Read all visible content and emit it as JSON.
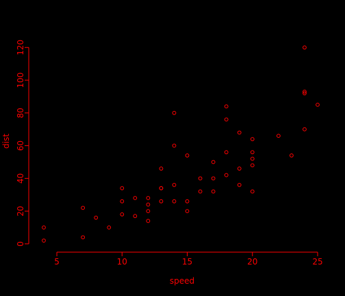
{
  "chart_data": {
    "type": "scatter",
    "title": "",
    "xlabel": "speed",
    "ylabel": "dist",
    "xlim": [
      3.16,
      25.84
    ],
    "ylim": [
      -1.72,
      124.72
    ],
    "xticks": [
      5,
      10,
      15,
      20,
      25
    ],
    "yticks": [
      0,
      20,
      40,
      60,
      80,
      100,
      120
    ],
    "grid": false,
    "legend": "none",
    "colors": {
      "background": "#000000",
      "foreground": "#ff0000"
    },
    "x": [
      4,
      4,
      7,
      7,
      8,
      9,
      10,
      10,
      10,
      11,
      11,
      12,
      12,
      12,
      12,
      13,
      13,
      13,
      13,
      14,
      14,
      14,
      14,
      15,
      15,
      15,
      16,
      16,
      17,
      17,
      17,
      18,
      18,
      18,
      18,
      19,
      19,
      19,
      20,
      20,
      20,
      20,
      20,
      22,
      23,
      24,
      24,
      24,
      24,
      25
    ],
    "y": [
      2,
      10,
      4,
      22,
      16,
      10,
      18,
      26,
      34,
      17,
      28,
      14,
      20,
      24,
      28,
      26,
      34,
      34,
      46,
      26,
      36,
      60,
      80,
      20,
      26,
      54,
      32,
      40,
      32,
      40,
      50,
      42,
      56,
      76,
      84,
      36,
      46,
      68,
      32,
      48,
      52,
      56,
      64,
      66,
      54,
      70,
      92,
      93,
      120,
      85
    ]
  }
}
